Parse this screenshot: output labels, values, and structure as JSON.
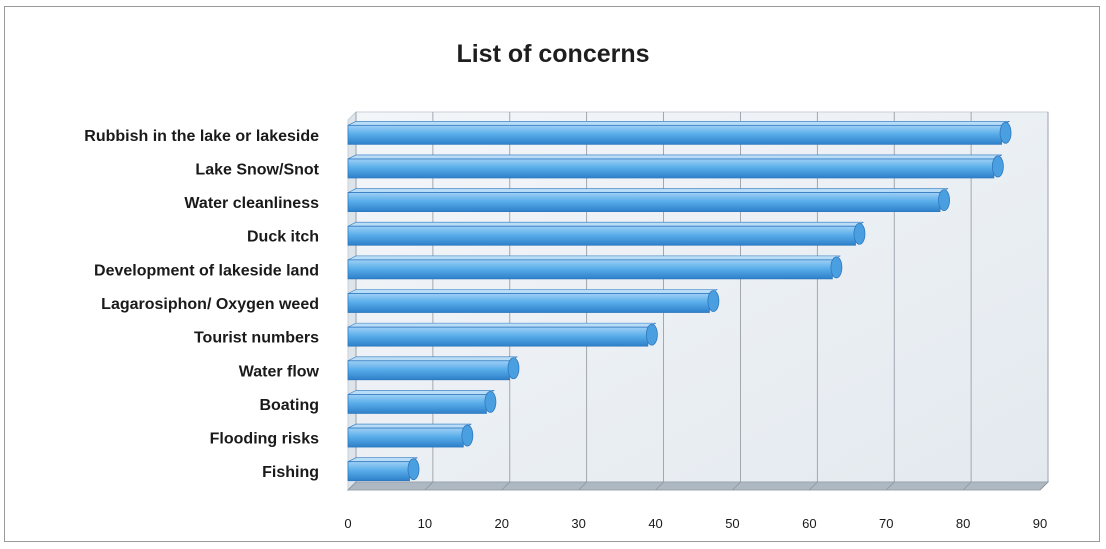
{
  "chart_data": {
    "type": "bar",
    "orientation": "horizontal",
    "title": "List of concerns",
    "xlabel": "",
    "ylabel": "",
    "categories": [
      "Rubbish in the lake or lakeside",
      "Lake Snow/Snot",
      "Water cleanliness",
      "Duck itch",
      "Development of lakeside land",
      "Lagarosiphon/ Oxygen weed",
      "Tourist numbers",
      "Water flow",
      "Boating",
      "Flooding risks",
      "Fishing"
    ],
    "values": [
      85,
      84,
      77,
      66,
      63,
      47,
      39,
      21,
      18,
      15,
      8
    ],
    "xlim": [
      0,
      90
    ],
    "xticks": [
      "0",
      "10",
      "20",
      "30",
      "40",
      "50",
      "60",
      "70",
      "80",
      "90"
    ],
    "grid": true,
    "legend": "none",
    "bar_color": "#4fa3e3",
    "bar_edge_color": "#2f78bf",
    "wall_color": "#e9eef3",
    "floor_color": "#aeb8c2"
  }
}
